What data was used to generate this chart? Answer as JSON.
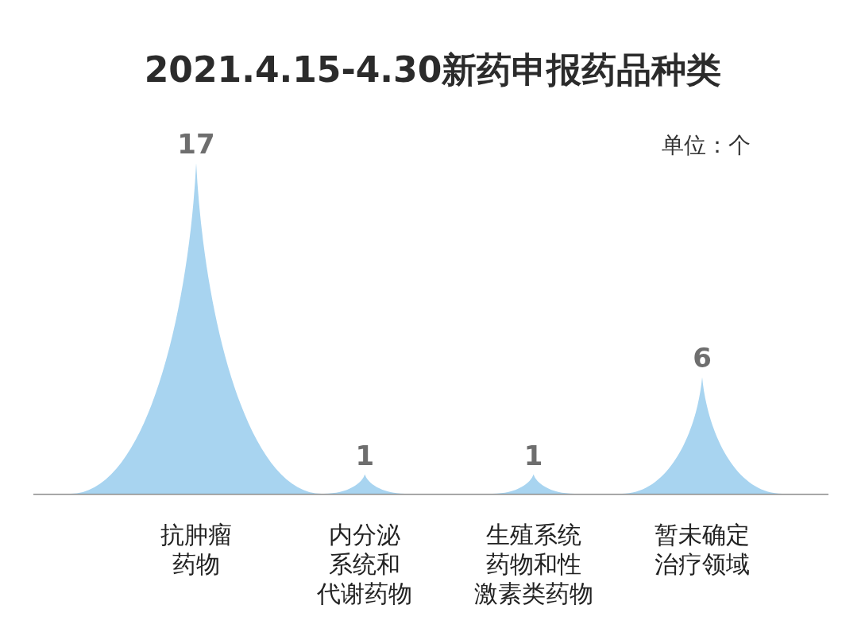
{
  "chart_data": {
    "type": "bar",
    "title": "2021.4.15-4.30新药申报药品种类",
    "annotations": [
      "单位：个"
    ],
    "categories": [
      "抗肿瘤药物",
      "内分泌系统和代谢药物",
      "生殖系统药物和性激素类药物",
      "暂未确定治疗领域"
    ],
    "values": [
      17,
      1,
      1,
      6
    ],
    "color": "#a8d4f0",
    "data_labels": true
  }
}
